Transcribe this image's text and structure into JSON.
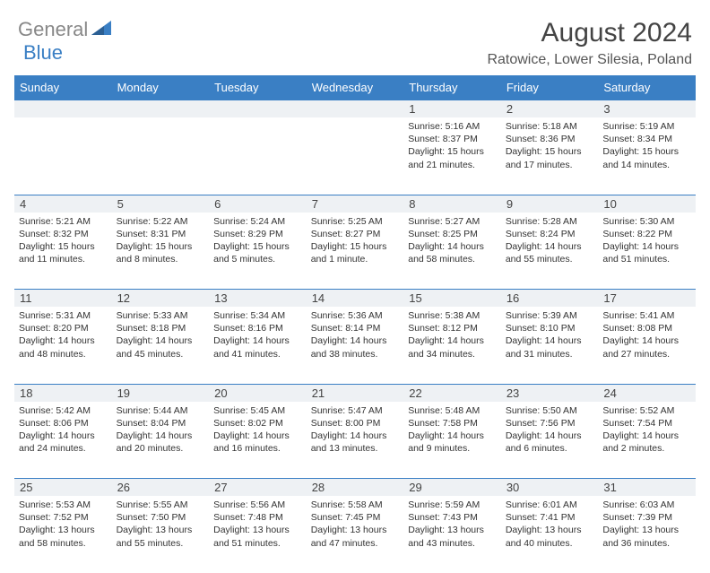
{
  "brand": {
    "part1": "General",
    "part2": "Blue"
  },
  "title": "August 2024",
  "location": "Ratowice, Lower Silesia, Poland",
  "colors": {
    "header_bg": "#3a7fc4",
    "daynum_bg": "#eef1f4",
    "border": "#3a7fc4",
    "text": "#333333",
    "logo_gray": "#888888",
    "logo_blue": "#3a7fc4"
  },
  "dayNames": [
    "Sunday",
    "Monday",
    "Tuesday",
    "Wednesday",
    "Thursday",
    "Friday",
    "Saturday"
  ],
  "weeks": [
    [
      {
        "num": "",
        "sr": "",
        "ss": "",
        "dl": ""
      },
      {
        "num": "",
        "sr": "",
        "ss": "",
        "dl": ""
      },
      {
        "num": "",
        "sr": "",
        "ss": "",
        "dl": ""
      },
      {
        "num": "",
        "sr": "",
        "ss": "",
        "dl": ""
      },
      {
        "num": "1",
        "sr": "Sunrise: 5:16 AM",
        "ss": "Sunset: 8:37 PM",
        "dl": "Daylight: 15 hours and 21 minutes."
      },
      {
        "num": "2",
        "sr": "Sunrise: 5:18 AM",
        "ss": "Sunset: 8:36 PM",
        "dl": "Daylight: 15 hours and 17 minutes."
      },
      {
        "num": "3",
        "sr": "Sunrise: 5:19 AM",
        "ss": "Sunset: 8:34 PM",
        "dl": "Daylight: 15 hours and 14 minutes."
      }
    ],
    [
      {
        "num": "4",
        "sr": "Sunrise: 5:21 AM",
        "ss": "Sunset: 8:32 PM",
        "dl": "Daylight: 15 hours and 11 minutes."
      },
      {
        "num": "5",
        "sr": "Sunrise: 5:22 AM",
        "ss": "Sunset: 8:31 PM",
        "dl": "Daylight: 15 hours and 8 minutes."
      },
      {
        "num": "6",
        "sr": "Sunrise: 5:24 AM",
        "ss": "Sunset: 8:29 PM",
        "dl": "Daylight: 15 hours and 5 minutes."
      },
      {
        "num": "7",
        "sr": "Sunrise: 5:25 AM",
        "ss": "Sunset: 8:27 PM",
        "dl": "Daylight: 15 hours and 1 minute."
      },
      {
        "num": "8",
        "sr": "Sunrise: 5:27 AM",
        "ss": "Sunset: 8:25 PM",
        "dl": "Daylight: 14 hours and 58 minutes."
      },
      {
        "num": "9",
        "sr": "Sunrise: 5:28 AM",
        "ss": "Sunset: 8:24 PM",
        "dl": "Daylight: 14 hours and 55 minutes."
      },
      {
        "num": "10",
        "sr": "Sunrise: 5:30 AM",
        "ss": "Sunset: 8:22 PM",
        "dl": "Daylight: 14 hours and 51 minutes."
      }
    ],
    [
      {
        "num": "11",
        "sr": "Sunrise: 5:31 AM",
        "ss": "Sunset: 8:20 PM",
        "dl": "Daylight: 14 hours and 48 minutes."
      },
      {
        "num": "12",
        "sr": "Sunrise: 5:33 AM",
        "ss": "Sunset: 8:18 PM",
        "dl": "Daylight: 14 hours and 45 minutes."
      },
      {
        "num": "13",
        "sr": "Sunrise: 5:34 AM",
        "ss": "Sunset: 8:16 PM",
        "dl": "Daylight: 14 hours and 41 minutes."
      },
      {
        "num": "14",
        "sr": "Sunrise: 5:36 AM",
        "ss": "Sunset: 8:14 PM",
        "dl": "Daylight: 14 hours and 38 minutes."
      },
      {
        "num": "15",
        "sr": "Sunrise: 5:38 AM",
        "ss": "Sunset: 8:12 PM",
        "dl": "Daylight: 14 hours and 34 minutes."
      },
      {
        "num": "16",
        "sr": "Sunrise: 5:39 AM",
        "ss": "Sunset: 8:10 PM",
        "dl": "Daylight: 14 hours and 31 minutes."
      },
      {
        "num": "17",
        "sr": "Sunrise: 5:41 AM",
        "ss": "Sunset: 8:08 PM",
        "dl": "Daylight: 14 hours and 27 minutes."
      }
    ],
    [
      {
        "num": "18",
        "sr": "Sunrise: 5:42 AM",
        "ss": "Sunset: 8:06 PM",
        "dl": "Daylight: 14 hours and 24 minutes."
      },
      {
        "num": "19",
        "sr": "Sunrise: 5:44 AM",
        "ss": "Sunset: 8:04 PM",
        "dl": "Daylight: 14 hours and 20 minutes."
      },
      {
        "num": "20",
        "sr": "Sunrise: 5:45 AM",
        "ss": "Sunset: 8:02 PM",
        "dl": "Daylight: 14 hours and 16 minutes."
      },
      {
        "num": "21",
        "sr": "Sunrise: 5:47 AM",
        "ss": "Sunset: 8:00 PM",
        "dl": "Daylight: 14 hours and 13 minutes."
      },
      {
        "num": "22",
        "sr": "Sunrise: 5:48 AM",
        "ss": "Sunset: 7:58 PM",
        "dl": "Daylight: 14 hours and 9 minutes."
      },
      {
        "num": "23",
        "sr": "Sunrise: 5:50 AM",
        "ss": "Sunset: 7:56 PM",
        "dl": "Daylight: 14 hours and 6 minutes."
      },
      {
        "num": "24",
        "sr": "Sunrise: 5:52 AM",
        "ss": "Sunset: 7:54 PM",
        "dl": "Daylight: 14 hours and 2 minutes."
      }
    ],
    [
      {
        "num": "25",
        "sr": "Sunrise: 5:53 AM",
        "ss": "Sunset: 7:52 PM",
        "dl": "Daylight: 13 hours and 58 minutes."
      },
      {
        "num": "26",
        "sr": "Sunrise: 5:55 AM",
        "ss": "Sunset: 7:50 PM",
        "dl": "Daylight: 13 hours and 55 minutes."
      },
      {
        "num": "27",
        "sr": "Sunrise: 5:56 AM",
        "ss": "Sunset: 7:48 PM",
        "dl": "Daylight: 13 hours and 51 minutes."
      },
      {
        "num": "28",
        "sr": "Sunrise: 5:58 AM",
        "ss": "Sunset: 7:45 PM",
        "dl": "Daylight: 13 hours and 47 minutes."
      },
      {
        "num": "29",
        "sr": "Sunrise: 5:59 AM",
        "ss": "Sunset: 7:43 PM",
        "dl": "Daylight: 13 hours and 43 minutes."
      },
      {
        "num": "30",
        "sr": "Sunrise: 6:01 AM",
        "ss": "Sunset: 7:41 PM",
        "dl": "Daylight: 13 hours and 40 minutes."
      },
      {
        "num": "31",
        "sr": "Sunrise: 6:03 AM",
        "ss": "Sunset: 7:39 PM",
        "dl": "Daylight: 13 hours and 36 minutes."
      }
    ]
  ]
}
